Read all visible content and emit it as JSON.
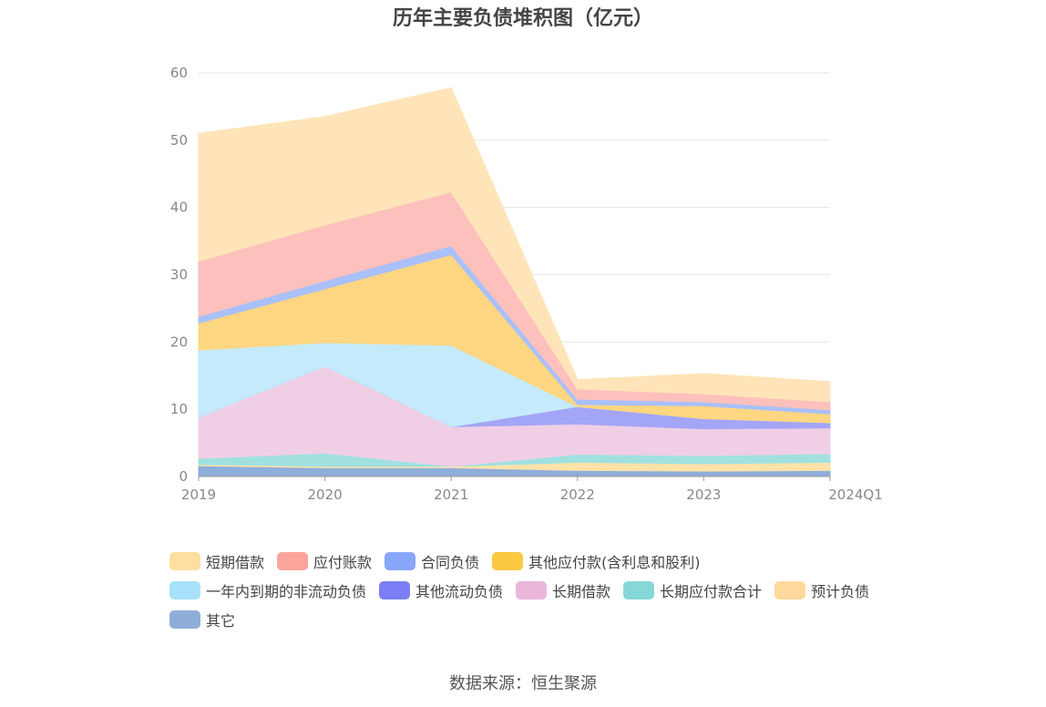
{
  "chart_data": {
    "type": "area",
    "title": "历年主要负债堆积图（亿元）",
    "categories": [
      "2019",
      "2020",
      "2021",
      "2022",
      "2023",
      "2024Q1"
    ],
    "y_ticks": [
      "0",
      "10",
      "20",
      "30",
      "40",
      "50",
      "60"
    ],
    "ylim": [
      0,
      60
    ],
    "grid": true,
    "legend_position": "bottom",
    "stacked": true,
    "series": [
      {
        "name": "其它",
        "color": "#8eaedb",
        "values": [
          1.6,
          1.3,
          1.3,
          0.9,
          0.8,
          0.9
        ]
      },
      {
        "name": "预计负债",
        "color": "#ffe2a8",
        "values": [
          0.2,
          0.2,
          0.2,
          1.2,
          1.1,
          1.2
        ]
      },
      {
        "name": "长期应付款合计",
        "color": "#a0e1e0",
        "values": [
          0.9,
          2.0,
          0.0,
          1.2,
          1.2,
          1.3
        ]
      },
      {
        "name": "长期借款",
        "color": "#f0cfe6",
        "values": [
          6.1,
          12.9,
          5.9,
          4.5,
          4.0,
          3.8
        ]
      },
      {
        "name": "其他流动负债",
        "color": "#a3a5f6",
        "values": [
          0.0,
          0.0,
          0.0,
          2.6,
          1.5,
          0.8
        ]
      },
      {
        "name": "一年内到期的非流动负债",
        "color": "#c5eafb",
        "values": [
          10.0,
          3.5,
          12.1,
          0.0,
          0.0,
          0.0
        ]
      },
      {
        "name": "其他应付款(含利息和股利)",
        "color": "#ffd681",
        "values": [
          4.0,
          8.0,
          13.5,
          0.3,
          1.9,
          1.3
        ]
      },
      {
        "name": "合同负债",
        "color": "#a9c0fb",
        "values": [
          1.0,
          1.2,
          1.3,
          0.8,
          0.6,
          0.6
        ]
      },
      {
        "name": "应付账款",
        "color": "#fdc0bc",
        "values": [
          8.2,
          8.3,
          8.0,
          1.5,
          1.2,
          1.2
        ]
      },
      {
        "name": "短期借款",
        "color": "#fee4b8",
        "values": [
          19.0,
          16.1,
          15.5,
          1.4,
          3.0,
          3.0
        ]
      }
    ]
  },
  "legend": [
    {
      "label": "短期借款",
      "color": "#ffdea1"
    },
    {
      "label": "应付账款",
      "color": "#fba49a"
    },
    {
      "label": "合同负债",
      "color": "#88a6fb"
    },
    {
      "label": "其他应付款(含利息和股利)",
      "color": "#fdc943"
    },
    {
      "label": "一年内到期的非流动负债",
      "color": "#a8e1fb"
    },
    {
      "label": "其他流动负债",
      "color": "#7b7ef4"
    },
    {
      "label": "长期借款",
      "color": "#eab7da"
    },
    {
      "label": "长期应付款合计",
      "color": "#86d7d7"
    },
    {
      "label": "预计负债",
      "color": "#ffd99c"
    },
    {
      "label": "其它",
      "color": "#8eaed9"
    }
  ],
  "source": "数据来源：恒生聚源"
}
